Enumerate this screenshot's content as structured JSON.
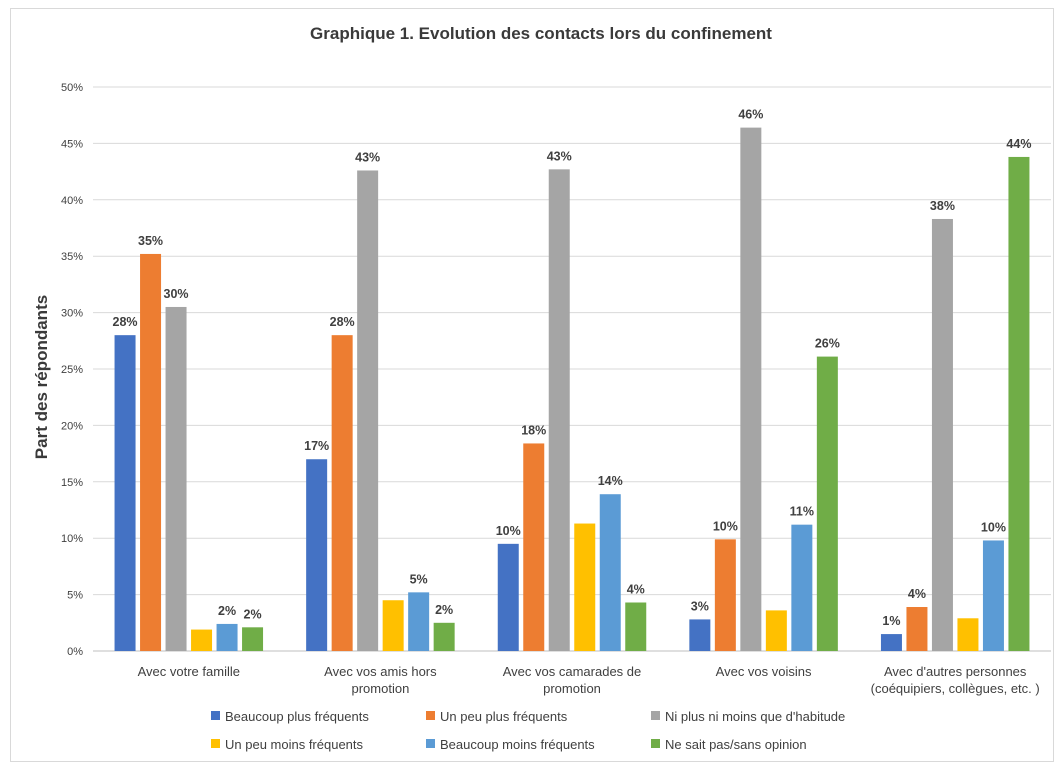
{
  "chart_data": {
    "type": "bar",
    "title": "Graphique 1. Evolution des contacts lors du confinement",
    "xlabel": "",
    "ylabel": "Part des répondants",
    "ylim": [
      0,
      50
    ],
    "ytick_step": 5,
    "ytick_suffix": "%",
    "grid": true,
    "legend_position": "bottom",
    "categories": [
      [
        "Avec votre famille"
      ],
      [
        "Avec vos amis hors",
        "promotion"
      ],
      [
        "Avec vos camarades de",
        "promotion"
      ],
      [
        "Avec vos voisins"
      ],
      [
        "Avec d'autres personnes",
        "(coéquipiers, collègues, etc. )"
      ]
    ],
    "series": [
      {
        "name": "Beaucoup plus fréquents",
        "color": "#4472c4",
        "values": [
          28,
          17,
          9.5,
          2.8,
          1.5
        ],
        "labels": [
          "28%",
          "17%",
          "10%",
          "3%",
          "1%"
        ]
      },
      {
        "name": "Un peu plus fréquents",
        "color": "#ed7d31",
        "values": [
          35.2,
          28,
          18.4,
          9.9,
          3.9
        ],
        "labels": [
          "35%",
          "28%",
          "18%",
          "10%",
          "4%"
        ]
      },
      {
        "name": "Ni plus ni moins que d'habitude",
        "color": "#a5a5a5",
        "values": [
          30.5,
          42.6,
          42.7,
          46.4,
          38.3
        ],
        "labels": [
          "30%",
          "43%",
          "43%",
          "46%",
          "38%"
        ]
      },
      {
        "name": "Un peu moins fréquents",
        "color": "#ffc000",
        "values": [
          1.9,
          4.5,
          11.3,
          3.6,
          2.9
        ],
        "labels": [
          "",
          "",
          "",
          "",
          ""
        ]
      },
      {
        "name": "Beaucoup moins fréquents",
        "color": "#5b9bd5",
        "values": [
          2.4,
          5.2,
          13.9,
          11.2,
          9.8
        ],
        "labels": [
          "2%",
          "5%",
          "14%",
          "11%",
          "10%"
        ]
      },
      {
        "name": "Ne sait pas/sans opinion",
        "color": "#70ad47",
        "values": [
          2.1,
          2.5,
          4.3,
          26.1,
          43.8
        ],
        "labels": [
          "2%",
          "2%",
          "4%",
          "26%",
          "44%"
        ]
      }
    ]
  }
}
